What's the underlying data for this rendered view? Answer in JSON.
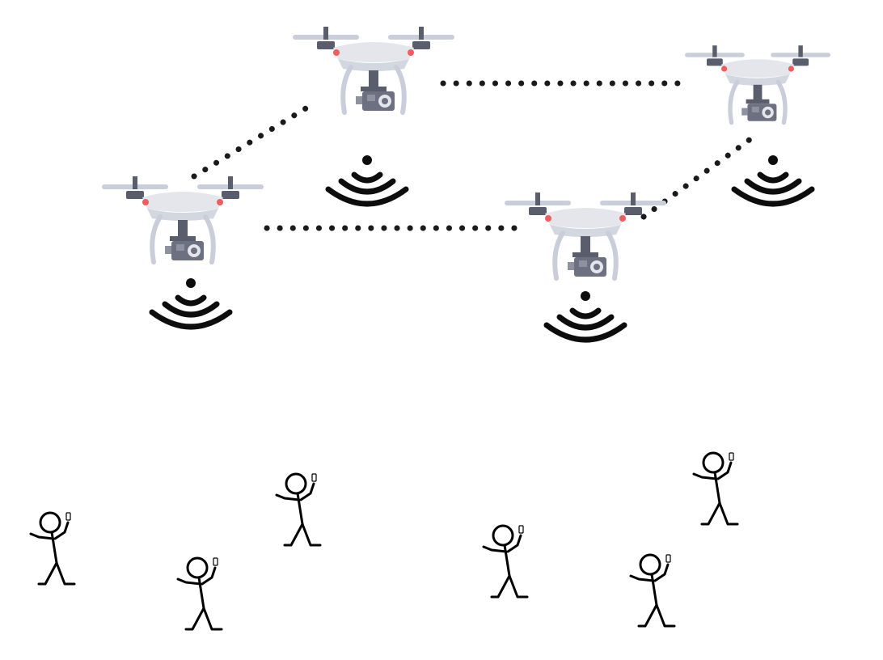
{
  "colors": {
    "background": "#ffffff",
    "drone_frame": "#e4e6ec",
    "drone_arm": "#c9ceda",
    "drone_dark": "#5a5e6c",
    "drone_camera": "#6d7080",
    "drone_led": "#f25c5c",
    "link": "#1a1a1a",
    "signal": "#0d0d0d",
    "person": "#000000"
  },
  "icons": {
    "drone": "drone-icon",
    "signal": "wifi-signal-icon",
    "person": "stick-figure-user-icon",
    "phone": "phone-icon"
  },
  "counts_shown": {
    "drones": 4,
    "links": 4,
    "users": 6
  }
}
